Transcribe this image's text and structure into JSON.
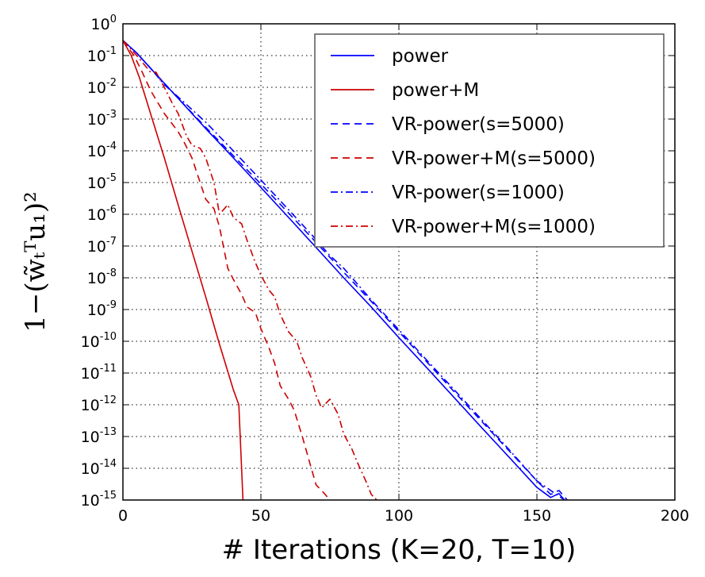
{
  "chart_data": {
    "type": "line",
    "xlabel": "# Iterations (K=20, T=10)",
    "ylabel": "1−(w̃ₜᵀu₁)²",
    "xlim": [
      0,
      200
    ],
    "ylim": [
      1e-15,
      1
    ],
    "yscale": "log",
    "grid": true,
    "legend_position": "top-right",
    "x_ticks": [
      "0",
      "50",
      "100",
      "150",
      "200"
    ],
    "y_ticks": [
      {
        "base": "10",
        "exp": "0"
      },
      {
        "base": "10",
        "exp": "-1"
      },
      {
        "base": "10",
        "exp": "-2"
      },
      {
        "base": "10",
        "exp": "-3"
      },
      {
        "base": "10",
        "exp": "-4"
      },
      {
        "base": "10",
        "exp": "-5"
      },
      {
        "base": "10",
        "exp": "-6"
      },
      {
        "base": "10",
        "exp": "-7"
      },
      {
        "base": "10",
        "exp": "-8"
      },
      {
        "base": "10",
        "exp": "-9"
      },
      {
        "base": "10",
        "exp": "-10"
      },
      {
        "base": "10",
        "exp": "-11"
      },
      {
        "base": "10",
        "exp": "-12"
      },
      {
        "base": "10",
        "exp": "-13"
      },
      {
        "base": "10",
        "exp": "-14"
      },
      {
        "base": "10",
        "exp": "-15"
      }
    ],
    "series": [
      {
        "name": "power",
        "color": "#0000ff",
        "style": "solid",
        "points": [
          [
            0,
            0.3
          ],
          [
            5,
            0.12
          ],
          [
            10,
            0.04
          ],
          [
            20,
            0.0045
          ],
          [
            30,
            0.0005
          ],
          [
            40,
            6e-05
          ],
          [
            50,
            7e-06
          ],
          [
            60,
            8e-07
          ],
          [
            70,
            9e-08
          ],
          [
            80,
            1e-08
          ],
          [
            90,
            1.2e-09
          ],
          [
            100,
            1.3e-10
          ],
          [
            110,
            1.5e-11
          ],
          [
            120,
            1.7e-12
          ],
          [
            130,
            1.9e-13
          ],
          [
            140,
            2.2e-14
          ],
          [
            150,
            2.5e-15
          ],
          [
            155,
            1.2e-15
          ],
          [
            158,
            1.6e-15
          ],
          [
            160,
            1e-15
          ]
        ]
      },
      {
        "name": "power+M",
        "color": "#cc0000",
        "style": "solid",
        "points": [
          [
            0,
            0.3
          ],
          [
            3,
            0.1
          ],
          [
            6,
            0.02
          ],
          [
            10,
            0.0015
          ],
          [
            15,
            6e-05
          ],
          [
            20,
            2e-06
          ],
          [
            25,
            7e-08
          ],
          [
            30,
            2.5e-09
          ],
          [
            35,
            8e-11
          ],
          [
            40,
            3e-12
          ],
          [
            42,
            1e-12
          ],
          [
            43.5,
            1e-15
          ]
        ]
      },
      {
        "name": "VR-power(s=5000)",
        "color": "#0000ff",
        "style": "dashed",
        "points": [
          [
            0,
            0.3
          ],
          [
            5,
            0.12
          ],
          [
            10,
            0.04
          ],
          [
            20,
            0.0045
          ],
          [
            30,
            0.00055
          ],
          [
            40,
            7e-05
          ],
          [
            50,
            9e-06
          ],
          [
            60,
            1.1e-06
          ],
          [
            70,
            1.3e-07
          ],
          [
            80,
            1.5e-08
          ],
          [
            90,
            1.8e-09
          ],
          [
            100,
            2e-10
          ],
          [
            110,
            2.3e-11
          ],
          [
            120,
            2.6e-12
          ],
          [
            130,
            3e-13
          ],
          [
            140,
            3.5e-14
          ],
          [
            150,
            4e-15
          ],
          [
            155,
            1.5e-15
          ],
          [
            158,
            2e-15
          ],
          [
            161,
            1e-15
          ]
        ]
      },
      {
        "name": "VR-power+M(s=5000)",
        "color": "#cc0000",
        "style": "dashed",
        "points": [
          [
            0,
            0.3
          ],
          [
            4,
            0.1
          ],
          [
            7,
            0.03
          ],
          [
            10,
            0.008
          ],
          [
            15,
            0.0015
          ],
          [
            20,
            0.0004
          ],
          [
            22,
            0.0002
          ],
          [
            25,
            6e-05
          ],
          [
            30,
            3e-06
          ],
          [
            33,
            1.5e-06
          ],
          [
            35,
            4e-07
          ],
          [
            38,
            2e-08
          ],
          [
            40,
            9e-09
          ],
          [
            43,
            3e-09
          ],
          [
            45,
            1.2e-09
          ],
          [
            48,
            8e-10
          ],
          [
            50,
            2.5e-10
          ],
          [
            53,
            6e-11
          ],
          [
            55,
            2e-11
          ],
          [
            57,
            4e-12
          ],
          [
            60,
            1.5e-12
          ],
          [
            62,
            7e-13
          ],
          [
            65,
            1e-13
          ],
          [
            68,
            1.2e-14
          ],
          [
            70,
            3e-15
          ],
          [
            73,
            1.6e-15
          ],
          [
            75,
            1e-15
          ]
        ]
      },
      {
        "name": "VR-power(s=1000)",
        "color": "#0000ff",
        "style": "dashdot",
        "points": [
          [
            0,
            0.3
          ],
          [
            5,
            0.12
          ],
          [
            10,
            0.04
          ],
          [
            15,
            0.012
          ],
          [
            20,
            0.005
          ],
          [
            30,
            0.0008
          ],
          [
            40,
            0.0001
          ],
          [
            50,
            1.2e-05
          ],
          [
            60,
            1.4e-06
          ],
          [
            70,
            1.6e-07
          ],
          [
            75,
            5e-08
          ],
          [
            80,
            2e-08
          ],
          [
            90,
            2e-09
          ],
          [
            100,
            2.3e-10
          ],
          [
            110,
            2.6e-11
          ],
          [
            120,
            3e-12
          ],
          [
            130,
            3.4e-13
          ],
          [
            140,
            3.8e-14
          ],
          [
            150,
            4e-15
          ],
          [
            155,
            2e-15
          ],
          [
            160,
            1e-15
          ]
        ]
      },
      {
        "name": "VR-power+M(s=1000)",
        "color": "#cc0000",
        "style": "dashdot",
        "points": [
          [
            0,
            0.3
          ],
          [
            5,
            0.1
          ],
          [
            10,
            0.03
          ],
          [
            12,
            0.03
          ],
          [
            15,
            0.01
          ],
          [
            18,
            0.003
          ],
          [
            20,
            0.0015
          ],
          [
            23,
            0.0003
          ],
          [
            25,
            0.00015
          ],
          [
            28,
            0.00012
          ],
          [
            30,
            6e-05
          ],
          [
            33,
            1e-05
          ],
          [
            35,
            1e-06
          ],
          [
            38,
            2e-06
          ],
          [
            40,
            8e-07
          ],
          [
            43,
            5e-07
          ],
          [
            45,
            1.5e-07
          ],
          [
            48,
            3e-08
          ],
          [
            50,
            1.2e-08
          ],
          [
            53,
            4e-09
          ],
          [
            55,
            2.5e-09
          ],
          [
            57,
            7e-10
          ],
          [
            60,
            2e-10
          ],
          [
            63,
            1e-10
          ],
          [
            65,
            3e-11
          ],
          [
            68,
            8e-12
          ],
          [
            70,
            2e-12
          ],
          [
            72,
            8e-13
          ],
          [
            75,
            1.5e-12
          ],
          [
            78,
            5e-13
          ],
          [
            80,
            1.2e-13
          ],
          [
            83,
            4e-14
          ],
          [
            85,
            1.5e-14
          ],
          [
            88,
            4e-15
          ],
          [
            90,
            1.5e-15
          ],
          [
            92,
            1e-15
          ]
        ]
      }
    ]
  }
}
